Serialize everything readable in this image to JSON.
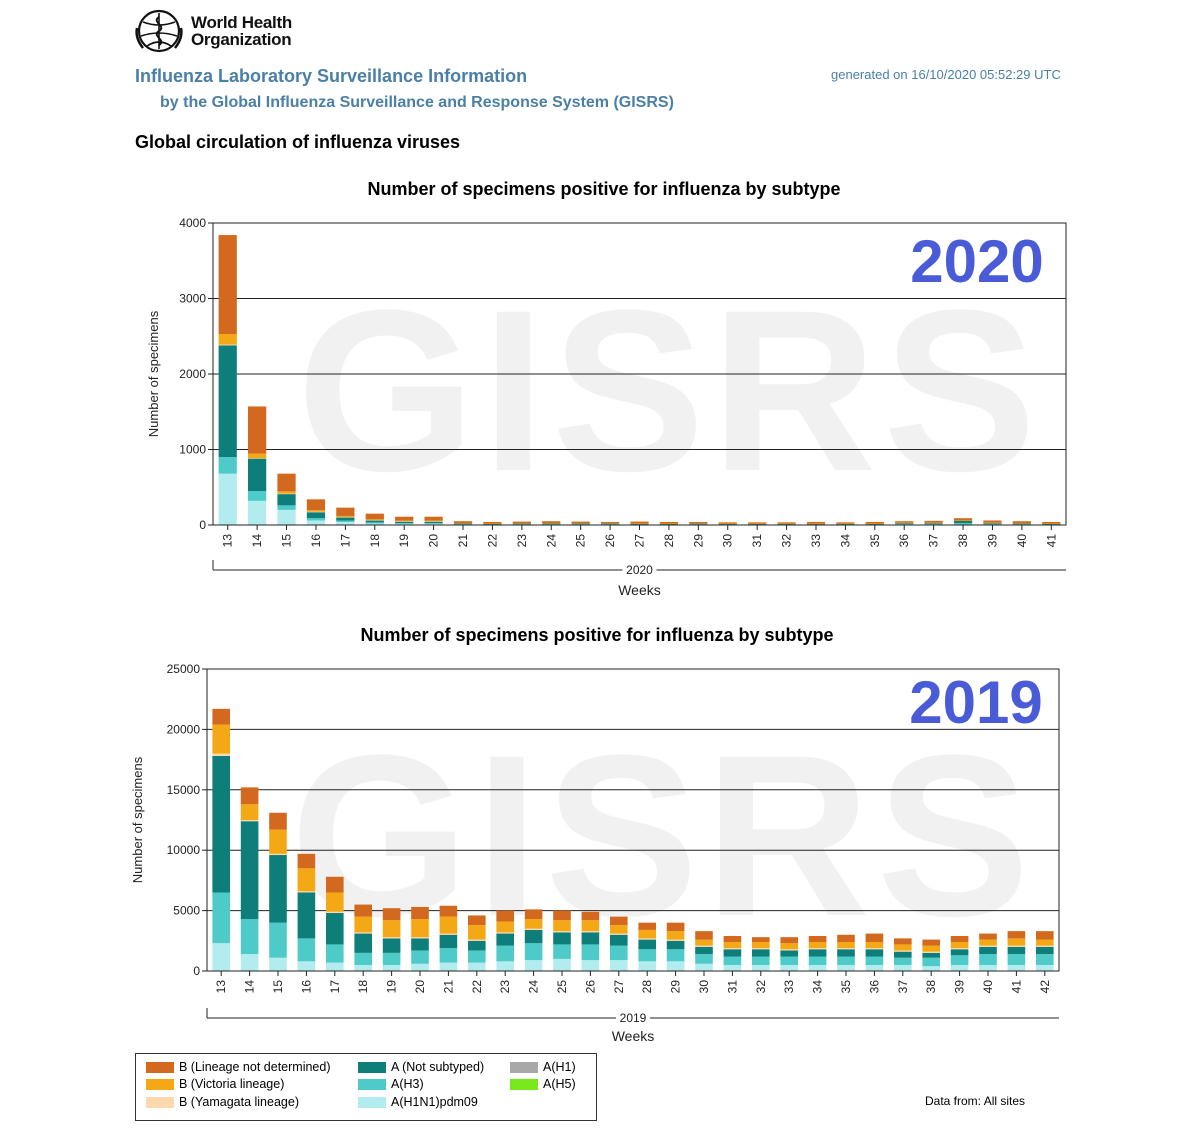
{
  "header": {
    "org_name": [
      "World Health",
      "Organization"
    ],
    "title": "Influenza Laboratory Surveillance Information",
    "subtitle": "by the Global Influenza Surveillance and Response System (GISRS)",
    "generated": "generated on 16/10/2020 05:52:29 UTC",
    "section_title": "Global circulation of influenza viruses",
    "data_from": "Data from: All sites"
  },
  "colors": {
    "B (Lineage not determined)": "#d2691e",
    "B (Victoria lineage)": "#f5a816",
    "B (Yamagata lineage)": "#fbd9ad",
    "A (Not subtyped)": "#0e7e7b",
    "A(H3)": "#4ecbc8",
    "A(H1N1)pdm09": "#b3ecee",
    "A(H1)": "#a8a8a8",
    "A(H5)": "#79e81c"
  },
  "legend": [
    {
      "label": "B (Lineage not determined)",
      "color": "#d2691e"
    },
    {
      "label": "B (Victoria lineage)",
      "color": "#f5a816"
    },
    {
      "label": "B (Yamagata lineage)",
      "color": "#fbd9ad"
    },
    {
      "label": "A (Not subtyped)",
      "color": "#0e7e7b"
    },
    {
      "label": "A(H3)",
      "color": "#4ecbc8"
    },
    {
      "label": "A(H1N1)pdm09",
      "color": "#b3ecee"
    },
    {
      "label": "A(H1)",
      "color": "#a8a8a8"
    },
    {
      "label": "A(H5)",
      "color": "#79e81c"
    }
  ],
  "chart_data": [
    {
      "type": "bar",
      "stacked": true,
      "title": "Number of specimens positive for influenza by subtype",
      "overlay_year_label": "2020",
      "watermark": "GISRS",
      "ylabel": "Number of specimens",
      "xlabel": "Weeks",
      "xgroup_label": "2020",
      "ylim": [
        0,
        4000
      ],
      "yticks": [
        "0",
        "1000",
        "2000",
        "3000",
        "4000"
      ],
      "categories": [
        "13",
        "14",
        "15",
        "16",
        "17",
        "18",
        "19",
        "20",
        "21",
        "22",
        "23",
        "24",
        "25",
        "26",
        "27",
        "28",
        "29",
        "30",
        "31",
        "32",
        "33",
        "34",
        "35",
        "36",
        "37",
        "38",
        "39",
        "40",
        "41"
      ],
      "series": [
        {
          "name": "A(H1N1)pdm09",
          "values": [
            680,
            320,
            200,
            60,
            40,
            20,
            15,
            15,
            5,
            5,
            5,
            5,
            5,
            5,
            5,
            5,
            5,
            5,
            5,
            5,
            5,
            5,
            5,
            5,
            5,
            5,
            5,
            5,
            5
          ]
        },
        {
          "name": "A(H3)",
          "values": [
            220,
            130,
            60,
            30,
            20,
            15,
            10,
            10,
            5,
            5,
            5,
            5,
            5,
            5,
            5,
            5,
            5,
            5,
            5,
            5,
            5,
            5,
            5,
            10,
            10,
            20,
            10,
            5,
            5
          ]
        },
        {
          "name": "A (Not subtyped)",
          "values": [
            1480,
            430,
            150,
            80,
            40,
            25,
            20,
            20,
            10,
            5,
            10,
            10,
            10,
            10,
            5,
            5,
            10,
            5,
            5,
            5,
            5,
            5,
            5,
            10,
            10,
            30,
            10,
            10,
            5
          ]
        },
        {
          "name": "B (Yamagata lineage)",
          "values": [
            10,
            5,
            5,
            5,
            5,
            5,
            5,
            5,
            0,
            0,
            0,
            0,
            0,
            0,
            0,
            0,
            0,
            0,
            0,
            0,
            0,
            0,
            0,
            0,
            0,
            0,
            0,
            0,
            0
          ]
        },
        {
          "name": "B (Victoria lineage)",
          "values": [
            140,
            60,
            30,
            20,
            15,
            10,
            10,
            10,
            5,
            5,
            5,
            5,
            5,
            5,
            5,
            5,
            5,
            5,
            5,
            5,
            5,
            5,
            5,
            5,
            5,
            5,
            5,
            5,
            5
          ]
        },
        {
          "name": "B (Lineage not determined)",
          "values": [
            1310,
            625,
            235,
            145,
            110,
            75,
            50,
            50,
            25,
            20,
            20,
            25,
            20,
            15,
            25,
            20,
            15,
            15,
            15,
            15,
            20,
            15,
            20,
            20,
            25,
            30,
            30,
            25,
            20
          ]
        }
      ]
    },
    {
      "type": "bar",
      "stacked": true,
      "title": "Number of specimens positive for influenza by subtype",
      "overlay_year_label": "2019",
      "watermark": "GISRS",
      "ylabel": "Number of specimens",
      "xlabel": "Weeks",
      "xgroup_label": "2019",
      "ylim": [
        0,
        25000
      ],
      "yticks": [
        "0",
        "5000",
        "10000",
        "15000",
        "20000",
        "25000"
      ],
      "categories": [
        "13",
        "14",
        "15",
        "16",
        "17",
        "18",
        "19",
        "20",
        "21",
        "22",
        "23",
        "24",
        "25",
        "26",
        "27",
        "28",
        "29",
        "30",
        "31",
        "32",
        "33",
        "34",
        "35",
        "36",
        "37",
        "38",
        "39",
        "40",
        "41",
        "42"
      ],
      "series": [
        {
          "name": "A(H1N1)pdm09",
          "values": [
            2300,
            1400,
            1100,
            800,
            700,
            500,
            500,
            600,
            700,
            700,
            800,
            900,
            1000,
            900,
            900,
            800,
            800,
            600,
            500,
            500,
            500,
            500,
            500,
            500,
            500,
            400,
            500,
            500,
            500,
            500
          ]
        },
        {
          "name": "A(H3)",
          "values": [
            4200,
            2900,
            2900,
            1900,
            1500,
            1000,
            1000,
            1100,
            1200,
            1000,
            1300,
            1400,
            1200,
            1300,
            1200,
            1000,
            1000,
            800,
            700,
            700,
            700,
            700,
            700,
            700,
            600,
            700,
            800,
            900,
            900,
            900
          ]
        },
        {
          "name": "A (Not subtyped)",
          "values": [
            11300,
            8100,
            5600,
            3800,
            2600,
            1600,
            1200,
            1000,
            1100,
            800,
            1000,
            1100,
            1000,
            1000,
            900,
            800,
            700,
            600,
            600,
            600,
            500,
            600,
            600,
            600,
            500,
            400,
            500,
            600,
            600,
            600
          ]
        },
        {
          "name": "B (Yamagata lineage)",
          "values": [
            200,
            100,
            100,
            100,
            100,
            100,
            100,
            100,
            100,
            100,
            100,
            100,
            100,
            100,
            100,
            100,
            100,
            100,
            100,
            100,
            100,
            100,
            100,
            100,
            100,
            100,
            100,
            100,
            100,
            100
          ]
        },
        {
          "name": "B (Victoria lineage)",
          "values": [
            2400,
            1300,
            2000,
            1900,
            1600,
            1300,
            1400,
            1500,
            1400,
            1200,
            900,
            800,
            900,
            900,
            700,
            700,
            700,
            500,
            500,
            500,
            500,
            500,
            500,
            500,
            500,
            500,
            500,
            500,
            600,
            500
          ]
        },
        {
          "name": "B (Lineage not determined)",
          "values": [
            1300,
            1400,
            1400,
            1200,
            1300,
            1000,
            1000,
            1000,
            900,
            800,
            900,
            800,
            800,
            700,
            700,
            600,
            700,
            700,
            500,
            400,
            500,
            500,
            600,
            700,
            500,
            500,
            500,
            500,
            600,
            700
          ]
        }
      ]
    }
  ]
}
